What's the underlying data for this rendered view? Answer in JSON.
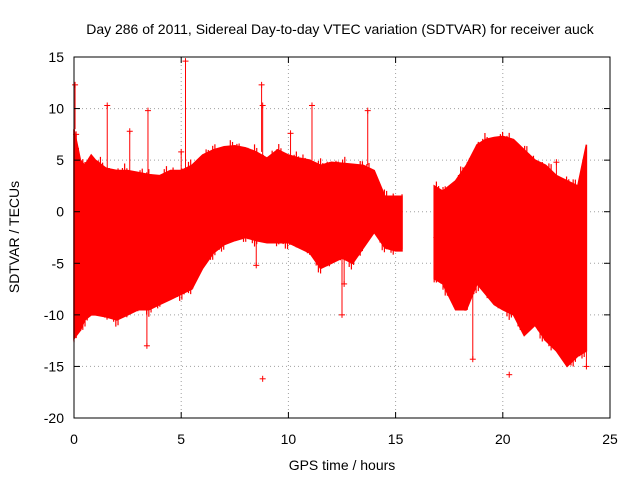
{
  "chart_data": {
    "type": "scatter",
    "title": "Day 286 of 2011, Sidereal Day-to-day VTEC variation (SDTVAR) for receiver auck",
    "xlabel": "GPS time / hours",
    "ylabel": "SDTVAR / TECUs",
    "xlim": [
      0,
      25
    ],
    "ylim": [
      -20,
      15
    ],
    "xticks": [
      0,
      5,
      10,
      15,
      20,
      25
    ],
    "yticks": [
      15,
      10,
      5,
      0,
      -5,
      -10,
      -15,
      -20
    ],
    "grid": true,
    "series_color": "#ff0000",
    "series": [
      {
        "name": "SDTVAR",
        "envelope": [
          {
            "x": 0.0,
            "lo": -12.3,
            "hi": 8.0
          },
          {
            "x": 0.3,
            "lo": -11.5,
            "hi": 5.0
          },
          {
            "x": 0.5,
            "lo": -10.5,
            "hi": 4.5
          },
          {
            "x": 0.8,
            "lo": -10.0,
            "hi": 5.5
          },
          {
            "x": 1.0,
            "lo": -10.0,
            "hi": 5.0
          },
          {
            "x": 1.5,
            "lo": -10.2,
            "hi": 4.2
          },
          {
            "x": 2.0,
            "lo": -10.5,
            "hi": 4.0
          },
          {
            "x": 2.5,
            "lo": -10.0,
            "hi": 4.0
          },
          {
            "x": 3.0,
            "lo": -9.5,
            "hi": 3.8
          },
          {
            "x": 3.5,
            "lo": -9.5,
            "hi": 3.6
          },
          {
            "x": 4.0,
            "lo": -9.0,
            "hi": 3.5
          },
          {
            "x": 4.5,
            "lo": -8.5,
            "hi": 4.0
          },
          {
            "x": 5.0,
            "lo": -8.0,
            "hi": 4.0
          },
          {
            "x": 5.5,
            "lo": -7.5,
            "hi": 4.5
          },
          {
            "x": 6.0,
            "lo": -5.5,
            "hi": 5.5
          },
          {
            "x": 6.5,
            "lo": -4.0,
            "hi": 6.0
          },
          {
            "x": 7.0,
            "lo": -3.2,
            "hi": 6.3
          },
          {
            "x": 7.5,
            "lo": -2.8,
            "hi": 6.4
          },
          {
            "x": 8.0,
            "lo": -2.5,
            "hi": 6.2
          },
          {
            "x": 8.5,
            "lo": -2.8,
            "hi": 5.8
          },
          {
            "x": 9.0,
            "lo": -3.0,
            "hi": 5.2
          },
          {
            "x": 9.5,
            "lo": -3.0,
            "hi": 6.0
          },
          {
            "x": 10.0,
            "lo": -3.0,
            "hi": 5.5
          },
          {
            "x": 10.5,
            "lo": -3.5,
            "hi": 5.2
          },
          {
            "x": 11.0,
            "lo": -4.0,
            "hi": 5.0
          },
          {
            "x": 11.5,
            "lo": -5.5,
            "hi": 4.5
          },
          {
            "x": 12.0,
            "lo": -5.0,
            "hi": 4.8
          },
          {
            "x": 12.5,
            "lo": -4.5,
            "hi": 4.7
          },
          {
            "x": 13.0,
            "lo": -5.0,
            "hi": 4.6
          },
          {
            "x": 13.5,
            "lo": -3.5,
            "hi": 4.5
          },
          {
            "x": 14.0,
            "lo": -2.0,
            "hi": 4.0
          },
          {
            "x": 14.5,
            "lo": -3.5,
            "hi": 1.5
          },
          {
            "x": 15.0,
            "lo": -3.8,
            "hi": 1.5
          },
          {
            "x": 15.3,
            "lo": -3.8,
            "hi": 1.5
          },
          {
            "gap": true
          },
          {
            "x": 16.8,
            "lo": -6.5,
            "hi": 2.5
          },
          {
            "x": 17.2,
            "lo": -7.0,
            "hi": 2.0
          },
          {
            "x": 17.8,
            "lo": -9.5,
            "hi": 3.0
          },
          {
            "x": 18.3,
            "lo": -9.5,
            "hi": 4.5
          },
          {
            "x": 18.8,
            "lo": -7.0,
            "hi": 6.5
          },
          {
            "x": 19.2,
            "lo": -8.0,
            "hi": 7.0
          },
          {
            "x": 19.6,
            "lo": -9.0,
            "hi": 7.2
          },
          {
            "x": 20.0,
            "lo": -9.5,
            "hi": 7.3
          },
          {
            "x": 20.5,
            "lo": -10.0,
            "hi": 7.0
          },
          {
            "x": 21.0,
            "lo": -12.0,
            "hi": 6.0
          },
          {
            "x": 21.5,
            "lo": -11.0,
            "hi": 5.0
          },
          {
            "x": 22.0,
            "lo": -12.5,
            "hi": 4.5
          },
          {
            "x": 22.5,
            "lo": -13.5,
            "hi": 3.5
          },
          {
            "x": 23.0,
            "lo": -15.0,
            "hi": 3.0
          },
          {
            "x": 23.5,
            "lo": -14.0,
            "hi": 2.5
          },
          {
            "x": 23.9,
            "lo": -13.5,
            "hi": 6.5
          }
        ],
        "outliers": [
          {
            "x": 0.05,
            "y": 12.3
          },
          {
            "x": 0.1,
            "y": 7.5
          },
          {
            "x": 1.55,
            "y": 10.3
          },
          {
            "x": 2.6,
            "y": 7.8
          },
          {
            "x": 3.45,
            "y": 9.8
          },
          {
            "x": 3.4,
            "y": -13.0
          },
          {
            "x": 5.2,
            "y": 14.6
          },
          {
            "x": 5.0,
            "y": 5.8
          },
          {
            "x": 8.75,
            "y": 12.3
          },
          {
            "x": 8.8,
            "y": 10.3
          },
          {
            "x": 8.5,
            "y": -5.2
          },
          {
            "x": 8.8,
            "y": -16.2
          },
          {
            "x": 10.1,
            "y": 7.6
          },
          {
            "x": 11.1,
            "y": 10.3
          },
          {
            "x": 12.6,
            "y": -7.0
          },
          {
            "x": 12.5,
            "y": -10.0
          },
          {
            "x": 13.7,
            "y": 9.8
          },
          {
            "x": 16.9,
            "y": -2.5
          },
          {
            "x": 18.6,
            "y": -14.3
          },
          {
            "x": 20.3,
            "y": -15.8
          },
          {
            "x": 22.5,
            "y": 4.8
          },
          {
            "x": 23.9,
            "y": -15.0
          }
        ]
      }
    ]
  }
}
